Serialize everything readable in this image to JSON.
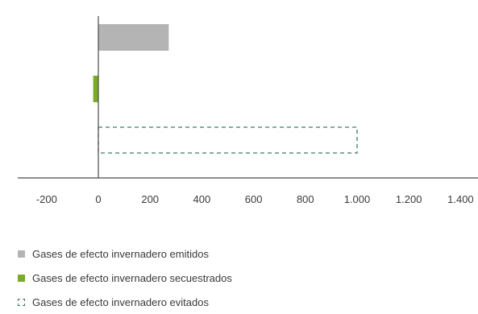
{
  "chart_data": {
    "type": "bar",
    "orientation": "horizontal",
    "xlim": [
      -200,
      1400
    ],
    "ticks": [
      -200,
      0,
      200,
      400,
      600,
      800,
      1000,
      1200,
      1400
    ],
    "tick_labels": [
      "-200",
      "0",
      "200",
      "400",
      "600",
      "800",
      "1.000",
      "1.200",
      "1.400"
    ],
    "grid": false,
    "legend_position": "bottom-left",
    "series": [
      {
        "name": "Gases de efecto invernadero emitidos",
        "value": 272,
        "color": "#b4b4b4",
        "style": "solid"
      },
      {
        "name": "Gases de efecto invernadero secuestrados",
        "value": -20,
        "color": "#7aab2a",
        "style": "solid"
      },
      {
        "name": "Gases de efecto invernadero evitados",
        "value": 1000,
        "color": "#3c7a6e",
        "style": "dashed"
      }
    ]
  },
  "legend": {
    "items": [
      "Gases de efecto invernadero emitidos",
      "Gases de efecto invernadero secuestrados",
      "Gases de efecto invernadero evitados"
    ]
  }
}
